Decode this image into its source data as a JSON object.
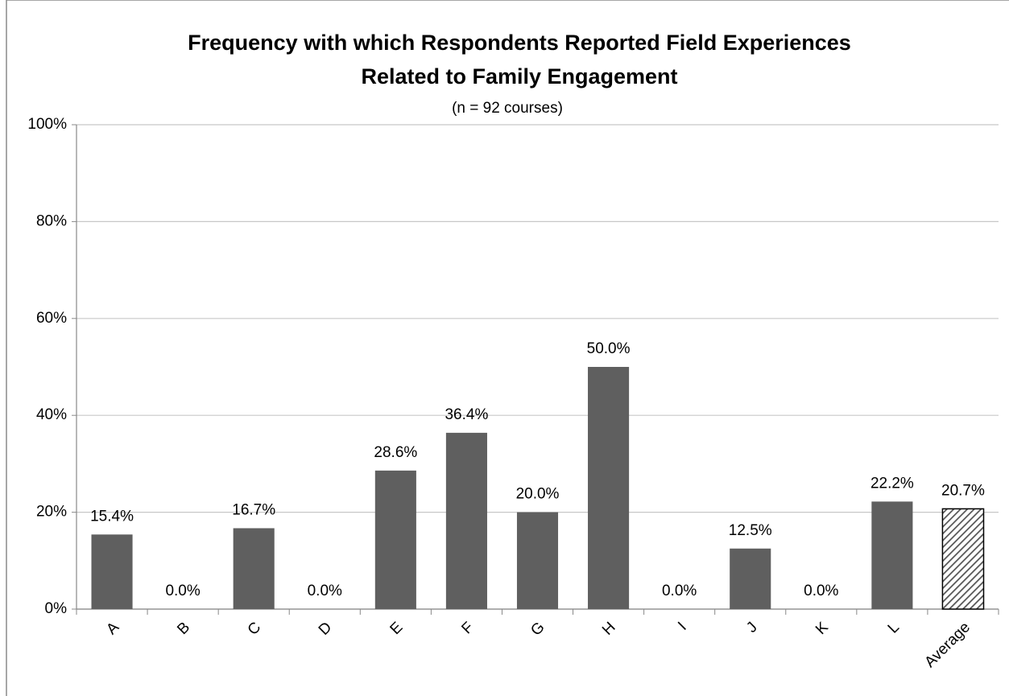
{
  "chart_data": {
    "type": "bar",
    "title": [
      "Frequency with which Respondents Reported Field Experiences",
      "Related to Family Engagement"
    ],
    "subtitle": "(n = 92 courses)",
    "categories": [
      "A",
      "B",
      "C",
      "D",
      "E",
      "F",
      "G",
      "H",
      "I",
      "J",
      "K",
      "L",
      "Average"
    ],
    "values": [
      15.4,
      0,
      16.7,
      0,
      28.6,
      36.4,
      20,
      50,
      0,
      12.5,
      0,
      22.2,
      20.7
    ],
    "value_labels": [
      "15.4%",
      "0.0%",
      "16.7%",
      "0.0%",
      "28.6%",
      "36.4%",
      "20.0%",
      "50.0%",
      "0.0%",
      "12.5%",
      "0.0%",
      "22.2%",
      "20.7%"
    ],
    "color": "#5f5f5f",
    "patterns": [
      "solid",
      "solid",
      "solid",
      "solid",
      "solid",
      "solid",
      "solid",
      "solid",
      "solid",
      "solid",
      "solid",
      "solid",
      "hatch"
    ],
    "ylim": [
      0,
      100
    ],
    "yticks": [
      {
        "value": 0,
        "label": "0%"
      },
      {
        "value": 20,
        "label": "20%"
      },
      {
        "value": 40,
        "label": "40%"
      },
      {
        "value": 60,
        "label": "60%"
      },
      {
        "value": 80,
        "label": "80%"
      },
      {
        "value": 100,
        "label": "100%"
      }
    ],
    "grid": true
  }
}
